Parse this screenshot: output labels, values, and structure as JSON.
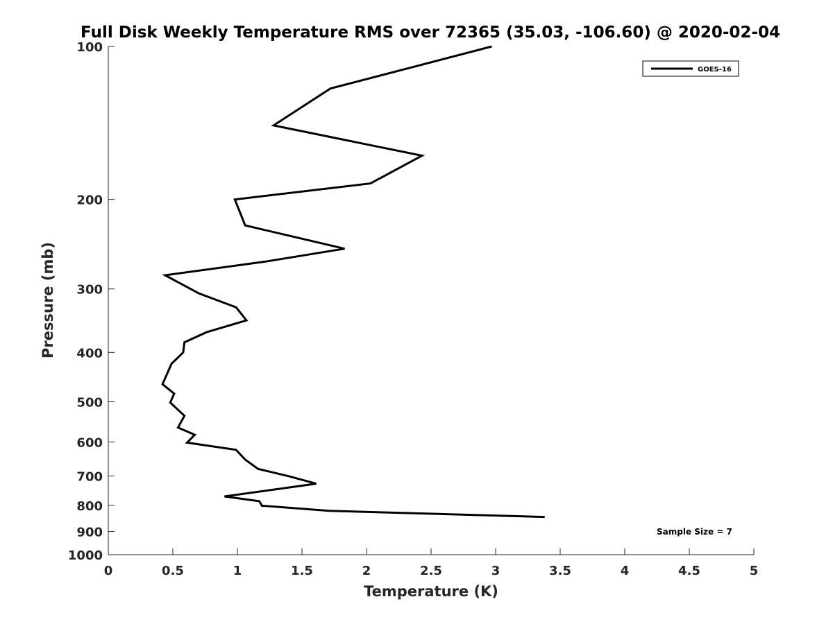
{
  "chart_data": {
    "type": "line",
    "title": "Full Disk Weekly Temperature RMS over 72365 (35.03, -106.60) @ 2020-02-04",
    "xlabel": "Temperature (K)",
    "ylabel": "Pressure (mb)",
    "xlim": [
      0,
      5
    ],
    "ylim": [
      100,
      1000
    ],
    "y_scale": "log",
    "y_reversed": true,
    "xticks": [
      "0",
      "0.5",
      "1",
      "1.5",
      "2",
      "2.5",
      "3",
      "3.5",
      "4",
      "4.5",
      "5"
    ],
    "yticks": [
      "100",
      "200",
      "300",
      "400",
      "500",
      "600",
      "700",
      "800",
      "900",
      "1000"
    ],
    "grid": false,
    "legend_position": "top-right",
    "annotation": "Sample Size = 7",
    "series": [
      {
        "name": "GOES-16",
        "color": "#000000",
        "points": [
          {
            "x": 2.97,
            "y": 100
          },
          {
            "x": 1.72,
            "y": 121
          },
          {
            "x": 1.28,
            "y": 143
          },
          {
            "x": 2.43,
            "y": 164
          },
          {
            "x": 2.03,
            "y": 186
          },
          {
            "x": 0.98,
            "y": 200
          },
          {
            "x": 1.06,
            "y": 225
          },
          {
            "x": 1.83,
            "y": 250
          },
          {
            "x": 1.22,
            "y": 265
          },
          {
            "x": 0.44,
            "y": 282
          },
          {
            "x": 0.7,
            "y": 306
          },
          {
            "x": 0.99,
            "y": 326
          },
          {
            "x": 1.07,
            "y": 346
          },
          {
            "x": 0.76,
            "y": 365
          },
          {
            "x": 0.59,
            "y": 382
          },
          {
            "x": 0.58,
            "y": 400
          },
          {
            "x": 0.49,
            "y": 421
          },
          {
            "x": 0.42,
            "y": 462
          },
          {
            "x": 0.51,
            "y": 482
          },
          {
            "x": 0.48,
            "y": 502
          },
          {
            "x": 0.59,
            "y": 533
          },
          {
            "x": 0.54,
            "y": 562
          },
          {
            "x": 0.67,
            "y": 581
          },
          {
            "x": 0.61,
            "y": 602
          },
          {
            "x": 0.99,
            "y": 622
          },
          {
            "x": 1.06,
            "y": 650
          },
          {
            "x": 1.16,
            "y": 678
          },
          {
            "x": 1.4,
            "y": 701
          },
          {
            "x": 1.61,
            "y": 725
          },
          {
            "x": 1.36,
            "y": 740
          },
          {
            "x": 0.9,
            "y": 768
          },
          {
            "x": 1.17,
            "y": 785
          },
          {
            "x": 1.19,
            "y": 801
          },
          {
            "x": 1.71,
            "y": 820
          },
          {
            "x": 3.38,
            "y": 843
          }
        ]
      }
    ]
  }
}
